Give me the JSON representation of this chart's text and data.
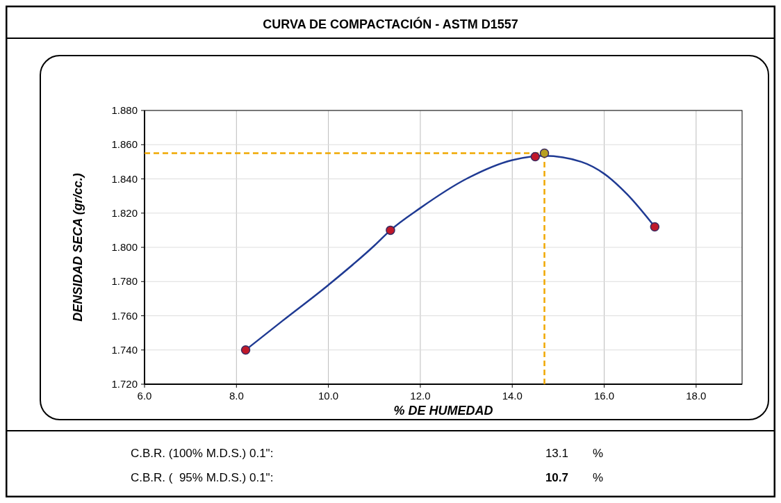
{
  "chart_data": {
    "type": "line",
    "title": "CURVA DE COMPACTACIÓN - ASTM D1557",
    "xlabel": "% DE HUMEDAD",
    "ylabel": "DENSIDAD  SECA (gr/cc.)",
    "xlim": [
      6,
      19
    ],
    "xticks": [
      {
        "value": 6,
        "label": "6.0"
      },
      {
        "value": 8,
        "label": "8.0"
      },
      {
        "value": 10,
        "label": "10.0"
      },
      {
        "value": 12,
        "label": "12.0"
      },
      {
        "value": 14,
        "label": "14.0"
      },
      {
        "value": 16,
        "label": "16.0"
      },
      {
        "value": 18,
        "label": "18.0"
      }
    ],
    "ylim": [
      1.72,
      1.88
    ],
    "yticks": [
      {
        "value": 1.72,
        "label": "1.720"
      },
      {
        "value": 1.74,
        "label": "1.740"
      },
      {
        "value": 1.76,
        "label": "1.760"
      },
      {
        "value": 1.78,
        "label": "1.780"
      },
      {
        "value": 1.8,
        "label": "1.800"
      },
      {
        "value": 1.82,
        "label": "1.820"
      },
      {
        "value": 1.84,
        "label": "1.840"
      },
      {
        "value": 1.86,
        "label": "1.860"
      },
      {
        "value": 1.88,
        "label": "1.880"
      }
    ],
    "grid": true,
    "series": [
      {
        "color": "#1f3a93",
        "marker": "none",
        "x": [
          8.2,
          9,
          10,
          11,
          11.35,
          12,
          13,
          14,
          14.7,
          15.5,
          16,
          16.5,
          17.1
        ],
        "values": [
          1.74,
          1.757,
          1.778,
          1.801,
          1.81,
          1.823,
          1.84,
          1.851,
          1.8535,
          1.85,
          1.843,
          1.831,
          1.812
        ]
      },
      {
        "type": "scatter",
        "color": "#c0182a",
        "marker": "circle",
        "x": [
          8.2,
          11.35,
          14.5,
          17.1
        ],
        "values": [
          1.74,
          1.81,
          1.853,
          1.812
        ]
      },
      {
        "type": "scatter",
        "color": "#b8a020",
        "marker": "circle",
        "x": [
          14.7
        ],
        "values": [
          1.855
        ]
      }
    ],
    "ref_lines": [
      {
        "axis": "y",
        "value": 1.855,
        "color": "#f0a800",
        "line_style": "dashed"
      },
      {
        "axis": "x",
        "value": 14.7,
        "color": "#f0a800",
        "line_style": "dashed"
      }
    ],
    "annotations": [
      "C.B.R. (100% M.D.S.) 0.1\":\t13.1\t%",
      "C.B.R. (  95% M.D.S.) 0.1\":\t10.7\t%"
    ]
  }
}
